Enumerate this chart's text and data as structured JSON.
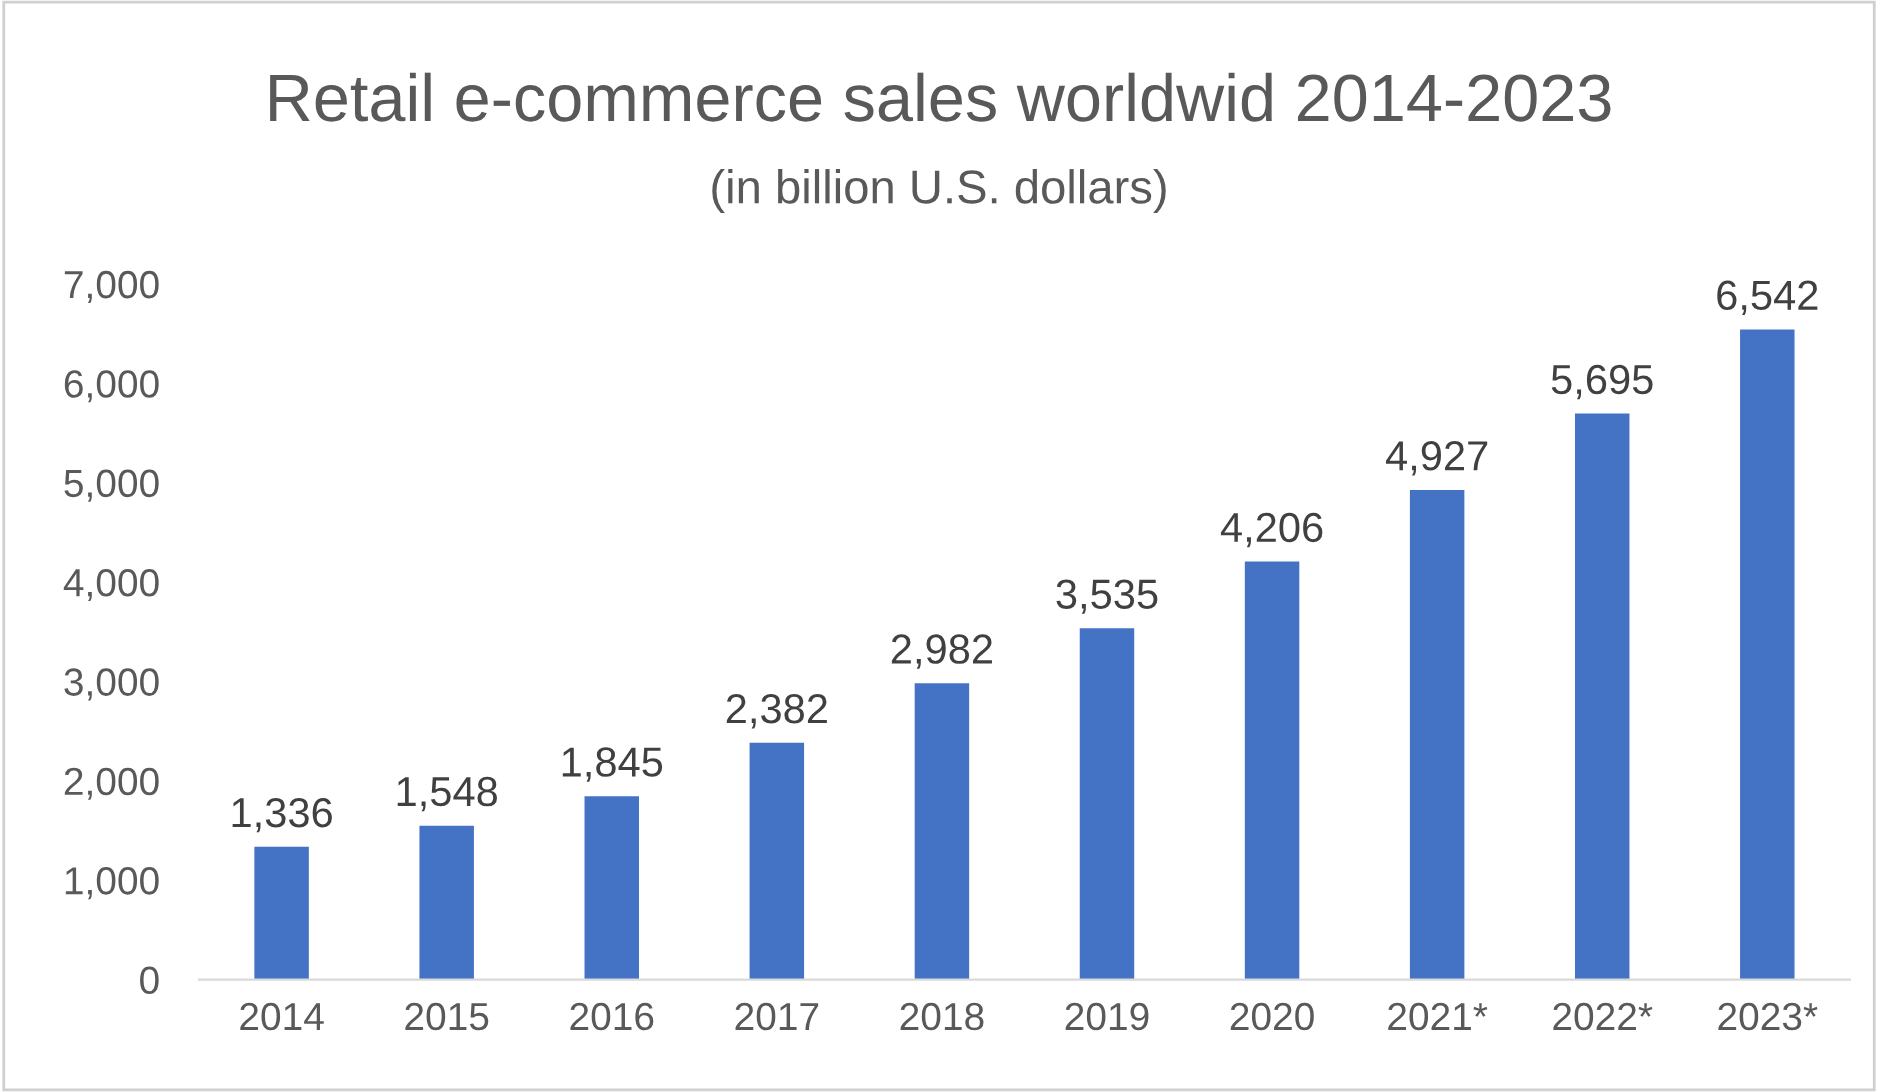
{
  "chart_data": {
    "type": "bar",
    "title": "Retail e-commerce sales worldwid 2014-2023",
    "subtitle": "(in billion U.S. dollars)",
    "categories": [
      "2014",
      "2015",
      "2016",
      "2017",
      "2018",
      "2019",
      "2020",
      "2021*",
      "2022*",
      "2023*"
    ],
    "values": [
      1336,
      1548,
      1845,
      2382,
      2982,
      3535,
      4206,
      4927,
      5695,
      6542
    ],
    "color": "#4472c4",
    "ylim": [
      0,
      7000
    ],
    "yticks": [
      {
        "value": 0,
        "label": "0"
      },
      {
        "value": 1000,
        "label": "1,000"
      },
      {
        "value": 2000,
        "label": "2,000"
      },
      {
        "value": 3000,
        "label": "3,000"
      },
      {
        "value": 4000,
        "label": "4,000"
      },
      {
        "value": 5000,
        "label": "5,000"
      },
      {
        "value": 6000,
        "label": "6,000"
      },
      {
        "value": 7000,
        "label": "7,000"
      }
    ],
    "value_labels": [
      "1,336",
      "1,548",
      "1,845",
      "2,382",
      "2,982",
      "3,535",
      "4,206",
      "4,927",
      "5,695",
      "6,542"
    ]
  }
}
